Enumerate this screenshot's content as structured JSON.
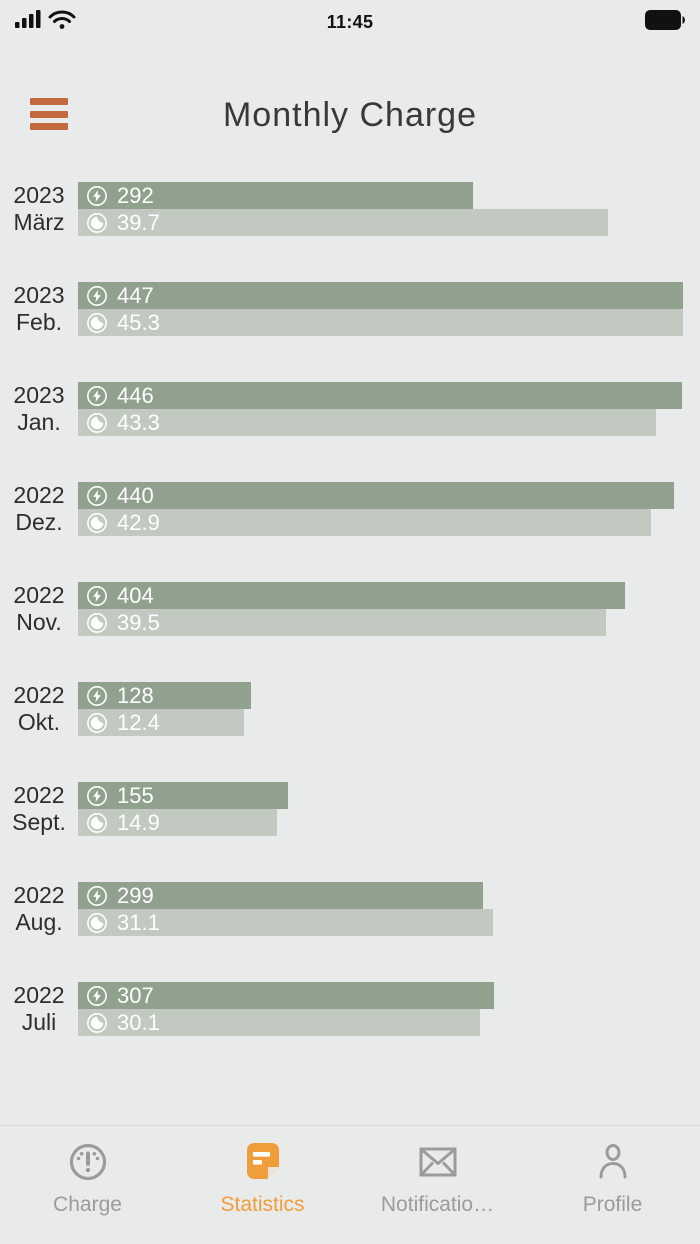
{
  "status_bar": {
    "time": "11:45"
  },
  "header": {
    "title": "Monthly Charge"
  },
  "colors": {
    "background": "#e9ebea",
    "bar_primary": "#90a28e",
    "bar_secondary": "#c1c9c0",
    "bar_text": "#ffffff",
    "accent_menu": "#c4693f",
    "accent_active": "#f09d3c",
    "nav_inactive": "#9b9b9b"
  },
  "chart_data": {
    "type": "bar",
    "orientation": "horizontal",
    "title": "Monthly Charge",
    "categories": [
      {
        "year": "2023",
        "month": "März"
      },
      {
        "year": "2023",
        "month": "Feb."
      },
      {
        "year": "2023",
        "month": "Jan."
      },
      {
        "year": "2022",
        "month": "Dez."
      },
      {
        "year": "2022",
        "month": "Nov."
      },
      {
        "year": "2022",
        "month": "Okt."
      },
      {
        "year": "2022",
        "month": "Sept."
      },
      {
        "year": "2022",
        "month": "Aug."
      },
      {
        "year": "2022",
        "month": "Juli"
      }
    ],
    "series": [
      {
        "name": "charged-energy",
        "icon": "lightning-icon",
        "style": "primary",
        "values": [
          292,
          447,
          446,
          440,
          404,
          128,
          155,
          299,
          307
        ],
        "max": 447
      },
      {
        "name": "secondary-metric",
        "icon": "duration-icon",
        "style": "secondary",
        "values": [
          39.7,
          45.3,
          43.3,
          42.9,
          39.5,
          12.4,
          14.9,
          31.1,
          30.1
        ],
        "max": 45.3
      }
    ],
    "legend": "none",
    "grid": false
  },
  "tab_bar": {
    "items": [
      {
        "label": "Charge",
        "icon": "gauge-icon",
        "active": false
      },
      {
        "label": "Statistics",
        "icon": "statistics-icon",
        "active": true
      },
      {
        "label": "Notificatio…",
        "icon": "envelope-icon",
        "active": false
      },
      {
        "label": "Profile",
        "icon": "person-icon",
        "active": false
      }
    ]
  }
}
